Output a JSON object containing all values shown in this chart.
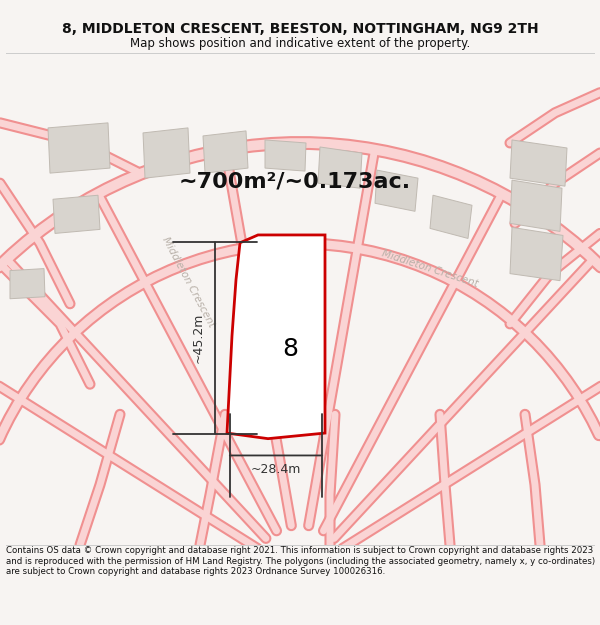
{
  "title": "8, MIDDLETON CRESCENT, BEESTON, NOTTINGHAM, NG9 2TH",
  "subtitle": "Map shows position and indicative extent of the property.",
  "footer": "Contains OS data © Crown copyright and database right 2021. This information is subject to Crown copyright and database rights 2023 and is reproduced with the permission of HM Land Registry. The polygons (including the associated geometry, namely x, y co-ordinates) are subject to Crown copyright and database rights 2023 Ordnance Survey 100026316.",
  "area_text": "~700m²/~0.173ac.",
  "street_label_left": "Middleton Crescent",
  "street_label_right": "Middleton Crescent",
  "plot_number": "8",
  "dim_width": "~28.4m",
  "dim_height": "~45.2m",
  "bg_color": "#f7f4f2",
  "road_fill": "#fad4d4",
  "road_edge": "#f09090",
  "building_fill": "#d8d4ce",
  "building_edge": "#c0bab2",
  "plot_edge": "#cc0000",
  "plot_fill": "#ffffff",
  "dim_color": "#333333",
  "text_color": "#111111",
  "street_color": "#b8b0a8",
  "sep_color": "#cccccc",
  "title_fontsize": 10,
  "subtitle_fontsize": 8.5,
  "area_fontsize": 16,
  "plot_num_fontsize": 18,
  "dim_fontsize": 9,
  "street_fontsize": 7.5,
  "footer_fontsize": 6.2
}
